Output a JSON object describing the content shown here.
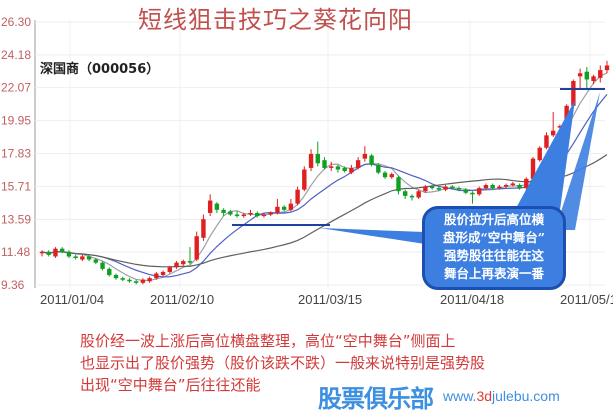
{
  "chart_data": {
    "type": "candlestick",
    "title": "短线狙击技巧之葵花向阳",
    "stock_label": "深国商（000056）",
    "y_ticks": [
      "26.30",
      "24.18",
      "22.07",
      "19.95",
      "17.83",
      "15.71",
      "13.59",
      "11.48",
      "9.36"
    ],
    "ylim": [
      9.36,
      26.3
    ],
    "x_ticks": [
      "2011/01/04",
      "2011/02/10",
      "2011/03/15",
      "2011/04/18",
      "2011/05/1"
    ],
    "grid": true,
    "colors": {
      "up": "#e02020",
      "down": "#10a020",
      "ma5": "#9aa0a8",
      "ma10": "#5060c0",
      "ma30": "#606060",
      "annotation": "#3d7fe0"
    },
    "ohlc": [
      [
        11.4,
        11.6,
        11.2,
        11.5
      ],
      [
        11.5,
        11.6,
        11.2,
        11.3
      ],
      [
        11.2,
        11.8,
        11.1,
        11.7
      ],
      [
        11.7,
        11.8,
        11.4,
        11.5
      ],
      [
        11.5,
        11.6,
        11.1,
        11.2
      ],
      [
        11.2,
        11.3,
        11.0,
        11.1
      ],
      [
        11.0,
        11.3,
        10.9,
        11.2
      ],
      [
        11.2,
        11.3,
        10.9,
        11.0
      ],
      [
        11.0,
        11.1,
        10.7,
        10.8
      ],
      [
        10.8,
        10.9,
        10.3,
        10.4
      ],
      [
        10.4,
        10.5,
        9.9,
        10.0
      ],
      [
        10.0,
        10.1,
        9.7,
        9.8
      ],
      [
        9.8,
        9.9,
        9.6,
        9.7
      ],
      [
        9.7,
        9.8,
        9.5,
        9.6
      ],
      [
        9.6,
        9.7,
        9.4,
        9.5
      ],
      [
        9.5,
        9.8,
        9.4,
        9.7
      ],
      [
        9.6,
        9.9,
        9.5,
        9.8
      ],
      [
        9.8,
        10.2,
        9.7,
        10.1
      ],
      [
        10.0,
        10.3,
        9.9,
        10.2
      ],
      [
        10.2,
        10.6,
        10.1,
        10.5
      ],
      [
        10.5,
        10.9,
        10.4,
        10.8
      ],
      [
        10.7,
        11.0,
        10.6,
        10.9
      ],
      [
        10.9,
        11.8,
        10.7,
        10.8
      ],
      [
        11.0,
        12.8,
        10.9,
        12.5
      ],
      [
        12.4,
        13.9,
        12.2,
        13.6
      ],
      [
        14.0,
        15.2,
        13.8,
        14.8
      ],
      [
        14.6,
        14.7,
        14.0,
        14.2
      ],
      [
        14.2,
        14.3,
        13.8,
        14.0
      ],
      [
        14.1,
        14.2,
        13.8,
        13.9
      ],
      [
        13.9,
        14.1,
        13.7,
        13.8
      ],
      [
        13.8,
        14.0,
        13.7,
        13.9
      ],
      [
        13.9,
        14.2,
        13.8,
        14.0
      ],
      [
        14.0,
        14.1,
        13.7,
        13.8
      ],
      [
        13.8,
        14.0,
        13.7,
        13.9
      ],
      [
        13.9,
        14.1,
        13.8,
        14.0
      ],
      [
        14.0,
        14.9,
        13.9,
        14.4
      ],
      [
        14.4,
        14.5,
        14.1,
        14.2
      ],
      [
        14.2,
        14.9,
        14.1,
        14.6
      ],
      [
        14.6,
        15.7,
        14.5,
        15.5
      ],
      [
        15.5,
        17.0,
        15.4,
        16.8
      ],
      [
        16.9,
        18.1,
        16.7,
        17.8
      ],
      [
        17.8,
        18.6,
        17.0,
        17.2
      ],
      [
        17.4,
        17.6,
        16.8,
        16.9
      ],
      [
        16.9,
        17.3,
        16.7,
        17.0
      ],
      [
        17.0,
        17.1,
        16.6,
        16.8
      ],
      [
        16.9,
        17.0,
        16.6,
        16.7
      ],
      [
        16.6,
        17.1,
        16.5,
        16.9
      ],
      [
        16.9,
        17.6,
        16.8,
        17.4
      ],
      [
        17.5,
        18.3,
        17.3,
        17.8
      ],
      [
        17.7,
        17.8,
        17.0,
        17.1
      ],
      [
        17.1,
        17.2,
        16.5,
        16.6
      ],
      [
        16.6,
        16.7,
        16.2,
        16.3
      ],
      [
        16.3,
        16.6,
        16.2,
        16.5
      ],
      [
        16.3,
        16.4,
        15.2,
        15.4
      ],
      [
        15.4,
        15.5,
        14.9,
        15.1
      ],
      [
        15.1,
        15.2,
        14.8,
        15.0
      ],
      [
        15.0,
        15.5,
        14.9,
        15.4
      ],
      [
        15.4,
        15.8,
        15.3,
        15.7
      ],
      [
        15.7,
        15.8,
        15.5,
        15.6
      ],
      [
        15.6,
        15.7,
        15.4,
        15.5
      ],
      [
        15.5,
        15.8,
        15.4,
        15.7
      ],
      [
        15.7,
        15.8,
        15.5,
        15.6
      ],
      [
        15.6,
        15.7,
        15.4,
        15.5
      ],
      [
        15.5,
        15.6,
        15.2,
        15.3
      ],
      [
        15.3,
        15.4,
        14.6,
        15.2
      ],
      [
        15.2,
        15.7,
        15.1,
        15.6
      ],
      [
        15.6,
        15.9,
        15.5,
        15.8
      ],
      [
        15.8,
        15.9,
        15.5,
        15.6
      ],
      [
        15.6,
        15.8,
        15.5,
        15.7
      ],
      [
        15.7,
        15.9,
        15.6,
        15.8
      ],
      [
        15.8,
        16.0,
        15.7,
        15.9
      ],
      [
        15.8,
        15.9,
        15.5,
        15.6
      ],
      [
        15.6,
        16.3,
        15.5,
        16.2
      ],
      [
        16.2,
        17.6,
        16.1,
        17.5
      ],
      [
        17.4,
        18.3,
        17.3,
        18.2
      ],
      [
        18.2,
        19.2,
        18.1,
        19.0
      ],
      [
        19.0,
        20.5,
        18.9,
        19.3
      ],
      [
        19.5,
        19.7,
        18.8,
        19.6
      ],
      [
        19.7,
        21.0,
        19.5,
        20.9
      ],
      [
        20.9,
        22.6,
        20.8,
        22.5
      ],
      [
        22.8,
        23.3,
        22.0,
        23.0
      ],
      [
        23.1,
        23.4,
        21.9,
        22.6
      ],
      [
        22.5,
        22.9,
        22.3,
        22.8
      ],
      [
        22.7,
        23.5,
        22.4,
        23.2
      ],
      [
        23.2,
        23.8,
        23.0,
        23.5
      ]
    ]
  },
  "annotation": {
    "lines": [
      "股价拉升后高位横",
      "盘形成“空中舞台”",
      "强势股往往能在这",
      "舞台上再表演一番"
    ]
  },
  "note": {
    "lines": [
      "股价经一波上涨后高位横盘整理，高位“空中舞台”侧面上",
      "也显示出了股价强势（股价该跌不跌）一般来说特别是强势股",
      "出现“空中舞台”后往往还能"
    ]
  },
  "watermark": {
    "logo": "股票俱乐部",
    "url_pre": "www.",
    "url_mid": "3d",
    "url_post": "julebu.com"
  }
}
